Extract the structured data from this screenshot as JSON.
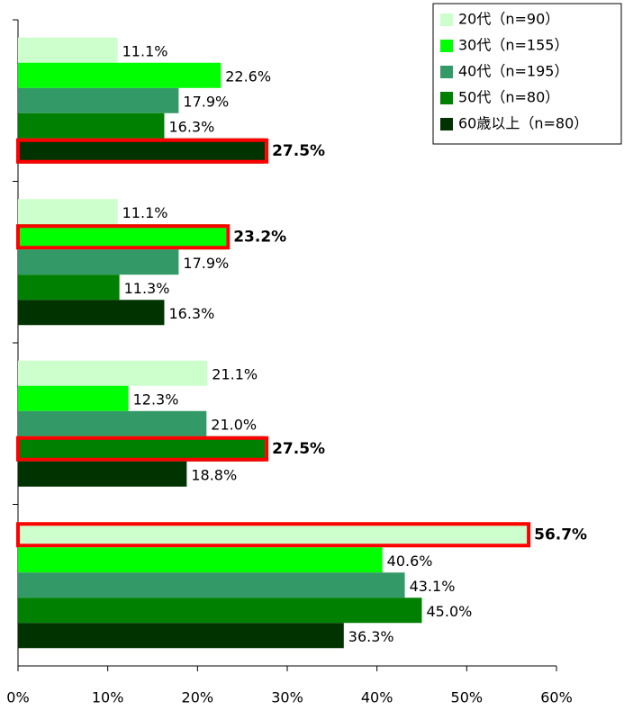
{
  "chart_data": {
    "type": "bar",
    "orientation": "horizontal",
    "categories": [
      null,
      null,
      null,
      null
    ],
    "series": [
      {
        "name": "20代（n=90）",
        "color": "#ccffcc",
        "values": [
          11.1,
          11.1,
          21.1,
          56.7
        ],
        "value_labels": [
          "11.1%",
          "11.1%",
          "21.1%",
          "56.7%"
        ],
        "highlight": [
          3
        ]
      },
      {
        "name": "30代（n=155）",
        "color": "#00ff00",
        "values": [
          22.6,
          23.2,
          12.3,
          40.6
        ],
        "value_labels": [
          "22.6%",
          "23.2%",
          "12.3%",
          "40.6%"
        ],
        "highlight": [
          1
        ]
      },
      {
        "name": "40代（n=195）",
        "color": "#339966",
        "values": [
          17.9,
          17.9,
          21.0,
          43.1
        ],
        "value_labels": [
          "17.9%",
          "17.9%",
          "21.0%",
          "43.1%"
        ],
        "highlight": []
      },
      {
        "name": "50代（n=80）",
        "color": "#008000",
        "values": [
          16.3,
          11.3,
          27.5,
          45.0
        ],
        "value_labels": [
          "16.3%",
          "11.3%",
          "27.5%",
          "45.0%"
        ],
        "highlight": [
          2
        ]
      },
      {
        "name": "60歳以上（n=80）",
        "color": "#003300",
        "values": [
          27.5,
          16.3,
          18.8,
          36.3
        ],
        "value_labels": [
          "27.5%",
          "16.3%",
          "18.8%",
          "36.3%"
        ],
        "highlight": [
          0
        ]
      }
    ],
    "highlight_color": "#ff0000",
    "xlim": [
      0,
      60
    ],
    "xticks": [
      {
        "value": 0,
        "label": "0%"
      },
      {
        "value": 10,
        "label": "10%"
      },
      {
        "value": 20,
        "label": "20%"
      },
      {
        "value": 30,
        "label": "30%"
      },
      {
        "value": 40,
        "label": "40%"
      },
      {
        "value": 50,
        "label": "50%"
      },
      {
        "value": 60,
        "label": "60%"
      }
    ],
    "legend": "top-right",
    "grid": false
  }
}
